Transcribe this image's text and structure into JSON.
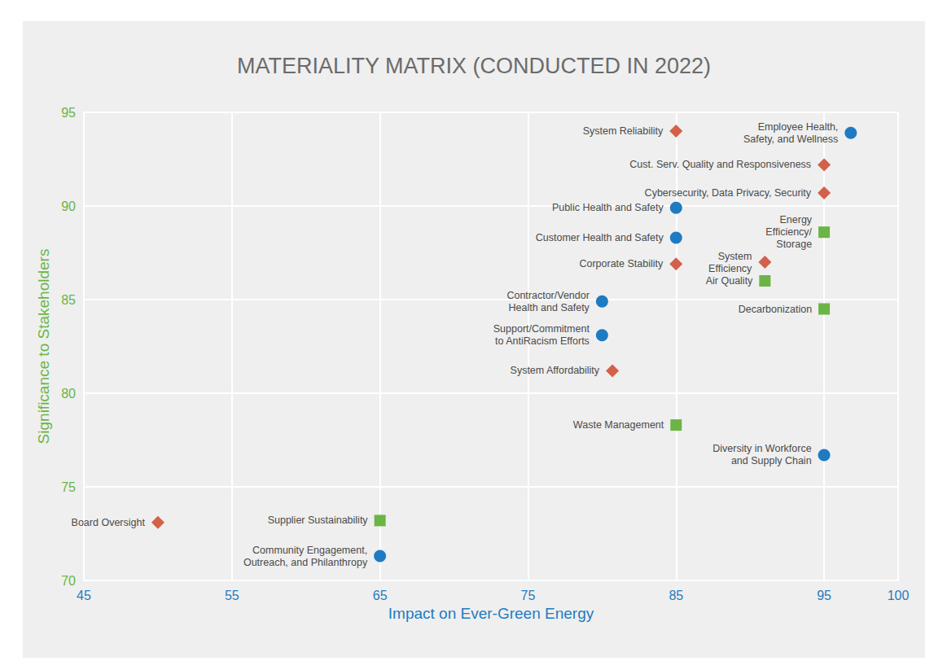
{
  "chart_data": {
    "type": "scatter",
    "title": "MATERIALITY MATRIX (CONDUCTED IN 2022)",
    "x_label": "Impact on Ever-Green Energy",
    "y_label": "Significance to Stakeholders",
    "xlim": [
      45,
      100
    ],
    "xticks": [
      45,
      55,
      65,
      75,
      85,
      95,
      100
    ],
    "ylim": [
      70,
      95
    ],
    "yticks": [
      70,
      75,
      80,
      85,
      90,
      95
    ],
    "grid": true,
    "series": [
      {
        "color": "#1f7bc1",
        "marker": "circle",
        "x": [
          96.8,
          85,
          85,
          80,
          80,
          95,
          65
        ],
        "y": [
          93.9,
          89.9,
          88.3,
          84.9,
          83.1,
          76.7,
          71.3
        ],
        "labels": [
          "Employee Health,\nSafety, and Wellness",
          "Public Health and Safety",
          "Customer Health and Safety",
          "Contractor/Vendor\nHealth and Safety",
          "Support/Commitment\nto AntiRacism Efforts",
          "Diversity in Workforce\nand Supply Chain",
          "Community Engagement,\nOutreach, and Philanthropy"
        ]
      },
      {
        "color": "#d2604a",
        "marker": "diamond",
        "x": [
          85,
          95,
          95,
          85,
          91,
          80.7,
          50
        ],
        "y": [
          94,
          92.2,
          90.7,
          86.9,
          87,
          81.2,
          73.1
        ],
        "labels": [
          "System Reliability",
          "Cust. Serv. Quality and Responsiveness",
          "Cybersecurity, Data Privacy, Security",
          "Corporate Stability",
          "System\nEfficiency",
          "System Affordability",
          "Board Oversight"
        ]
      },
      {
        "color": "#6ab545",
        "marker": "square",
        "x": [
          95,
          91,
          95,
          85,
          65
        ],
        "y": [
          88.6,
          86,
          84.5,
          78.3,
          73.2
        ],
        "labels": [
          "Energy\nEfficiency/\nStorage",
          "Air Quality",
          "Decarbonization",
          "Waste Management",
          "Supplier Sustainability"
        ]
      }
    ]
  }
}
